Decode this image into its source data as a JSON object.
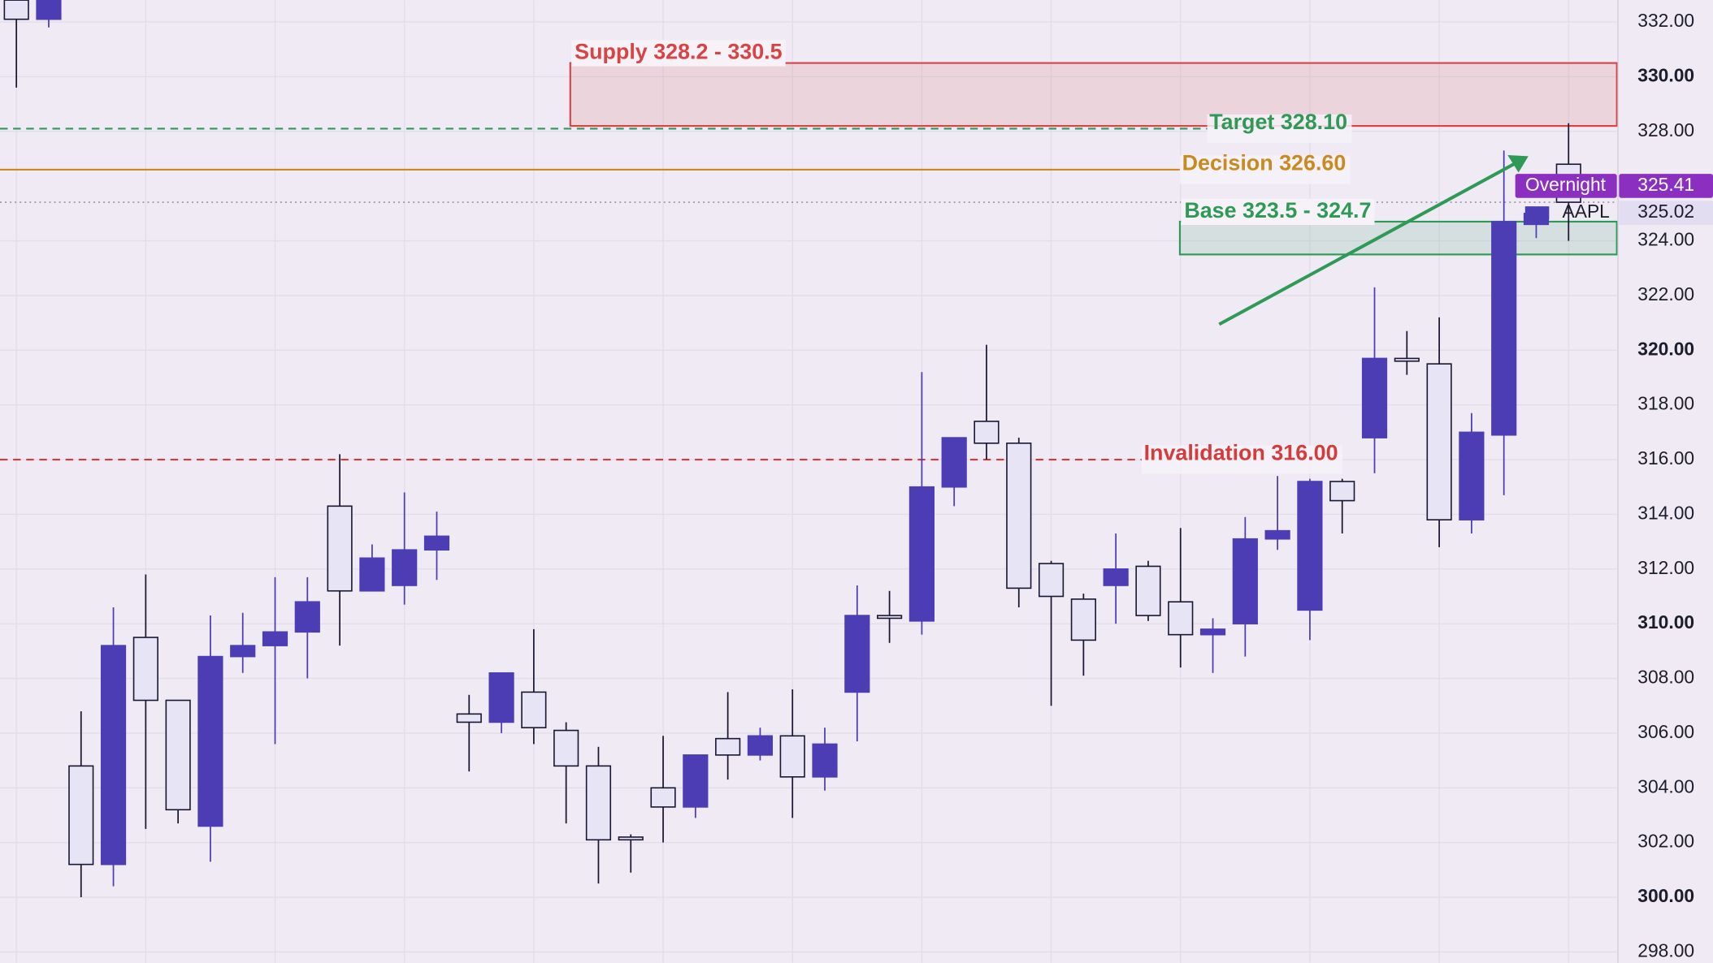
{
  "chart_data": {
    "type": "candlestick",
    "ylim": [
      297.6,
      332.8
    ],
    "yticks": [
      {
        "value": 298,
        "label": "298.00"
      },
      {
        "value": 300,
        "label": "300.00"
      },
      {
        "value": 302,
        "label": "302.00"
      },
      {
        "value": 304,
        "label": "304.00"
      },
      {
        "value": 306,
        "label": "306.00"
      },
      {
        "value": 308,
        "label": "308.00"
      },
      {
        "value": 310,
        "label": "310.00"
      },
      {
        "value": 312,
        "label": "312.00"
      },
      {
        "value": 314,
        "label": "314.00"
      },
      {
        "value": 316,
        "label": "316.00"
      },
      {
        "value": 318,
        "label": "318.00"
      },
      {
        "value": 320,
        "label": "320.00"
      },
      {
        "value": 322,
        "label": "322.00"
      },
      {
        "value": 324,
        "label": "324.00"
      },
      {
        "value": 328,
        "label": "328.00"
      },
      {
        "value": 330,
        "label": "330.00"
      },
      {
        "value": 332,
        "label": "332.00"
      }
    ],
    "grid": true,
    "up_color": "#4c3db5",
    "down_color": "#e7e4f6",
    "open": [
      332.8,
      332.1,
      304.8,
      301.2,
      309.5,
      307.2,
      302.6,
      308.8,
      309.2,
      309.7,
      314.3,
      311.2,
      311.4,
      312.7,
      306.7,
      306.4,
      307.5,
      306.1,
      304.8,
      302.2,
      304.0,
      303.3,
      305.8,
      305.2,
      305.9,
      304.4,
      307.5,
      310.3,
      310.1,
      315.0,
      317.4,
      316.6,
      312.2,
      310.9,
      311.4,
      312.1,
      310.8,
      309.6,
      310.0,
      313.1,
      310.5,
      315.2,
      316.8,
      319.7,
      319.5,
      313.8,
      316.9,
      324.6,
      326.8
    ],
    "high": [
      332.8,
      332.8,
      306.8,
      310.6,
      311.8,
      307.2,
      310.3,
      310.4,
      311.7,
      311.7,
      316.2,
      312.9,
      314.8,
      314.1,
      307.4,
      308.2,
      309.8,
      306.4,
      305.5,
      302.3,
      305.9,
      305.2,
      307.5,
      306.2,
      307.6,
      306.2,
      311.4,
      311.2,
      319.2,
      316.8,
      320.2,
      316.8,
      312.3,
      311.1,
      313.3,
      312.3,
      313.5,
      310.2,
      313.9,
      315.4,
      315.3,
      315.3,
      322.3,
      320.7,
      321.2,
      317.7,
      327.3,
      325.2,
      328.3
    ],
    "low": [
      329.6,
      331.8,
      300.0,
      300.4,
      302.5,
      302.7,
      301.3,
      308.2,
      305.6,
      308.0,
      309.2,
      311.2,
      310.7,
      311.6,
      304.6,
      306.0,
      305.6,
      302.7,
      300.5,
      300.9,
      302.0,
      302.9,
      304.3,
      305.0,
      302.9,
      303.9,
      305.7,
      309.3,
      309.6,
      314.3,
      316.0,
      310.6,
      307.0,
      308.1,
      310.0,
      310.1,
      308.4,
      308.2,
      308.8,
      312.7,
      309.4,
      313.3,
      315.5,
      319.1,
      312.8,
      313.3,
      314.7,
      324.1,
      324.0
    ],
    "close": [
      332.1,
      332.8,
      301.2,
      309.2,
      307.2,
      303.2,
      308.8,
      309.2,
      309.7,
      310.8,
      311.2,
      312.4,
      312.7,
      313.2,
      306.4,
      308.2,
      306.2,
      304.8,
      302.1,
      302.1,
      303.3,
      305.2,
      305.2,
      305.9,
      304.4,
      305.6,
      310.3,
      310.2,
      315.0,
      316.8,
      316.6,
      311.3,
      311.0,
      309.4,
      312.0,
      310.3,
      309.6,
      309.8,
      313.1,
      313.4,
      315.2,
      314.5,
      319.7,
      319.6,
      313.8,
      317.0,
      324.7,
      325.0,
      325.41
    ],
    "zones": [
      {
        "label": "Supply 328.2 - 330.5",
        "low": 328.2,
        "high": 330.5,
        "color": "#d94343"
      },
      {
        "label": "Base 323.5 - 324.7",
        "low": 323.5,
        "high": 324.7,
        "color": "#2e9a55"
      }
    ],
    "levels": [
      {
        "label": "Target 328.10",
        "value": 328.1,
        "color": "#2e9a55",
        "style": "dashed"
      },
      {
        "label": "Decision 326.60",
        "value": 326.6,
        "color": "#c98a1e",
        "style": "solid"
      },
      {
        "label": "Invalidation 316.00",
        "value": 316.0,
        "color": "#d43c3c",
        "style": "dashed"
      }
    ],
    "price_labels": [
      {
        "name": "Overnight",
        "value": 325.41,
        "color": "#8b2fc0"
      },
      {
        "name": "AAPL",
        "value": 325.02,
        "color": "#4c3db5"
      }
    ]
  }
}
